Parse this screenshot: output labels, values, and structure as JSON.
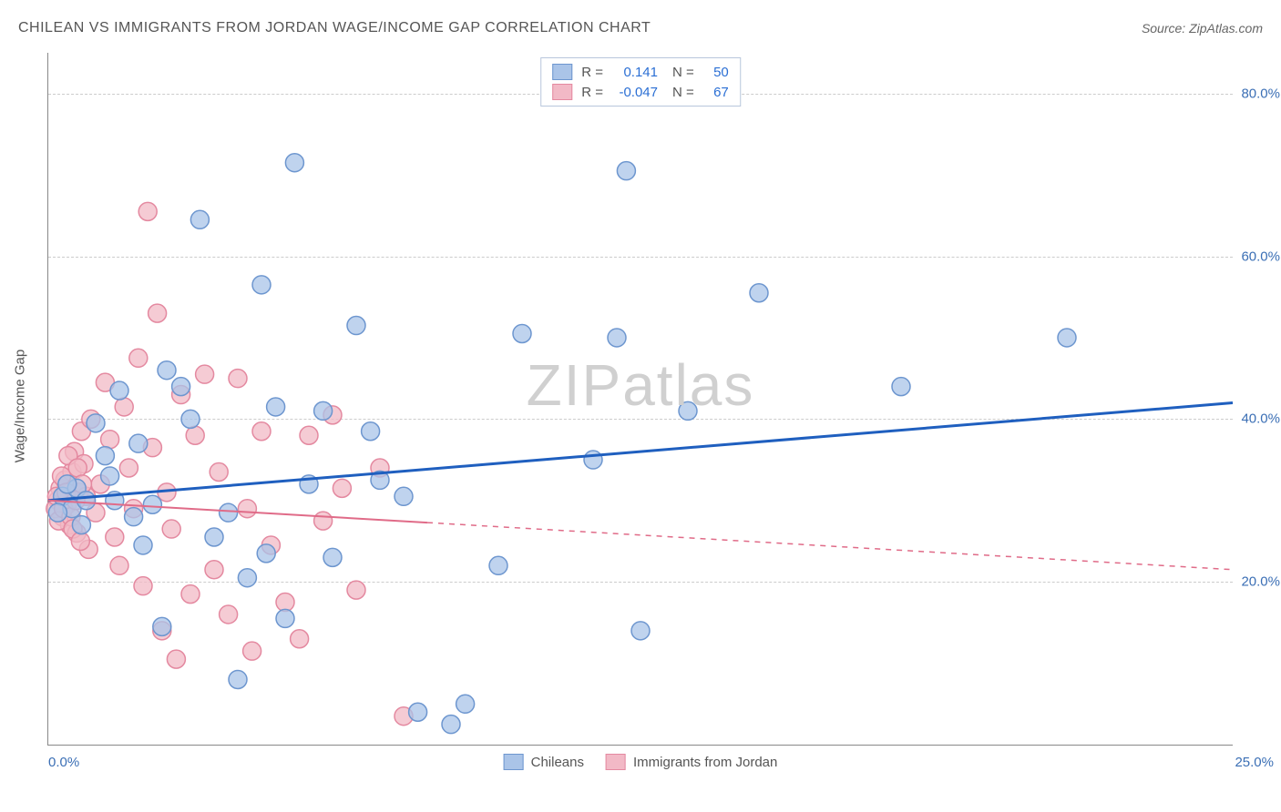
{
  "header": {
    "title": "CHILEAN VS IMMIGRANTS FROM JORDAN WAGE/INCOME GAP CORRELATION CHART",
    "source_label": "Source:",
    "source_value": "ZipAtlas.com"
  },
  "chart": {
    "type": "scatter",
    "ylabel": "Wage/Income Gap",
    "background_color": "#ffffff",
    "grid_color": "#cccccc",
    "axis_color": "#888888",
    "tick_color": "#3b6fb5",
    "xlim": [
      0,
      25
    ],
    "ylim": [
      0,
      85
    ],
    "yticks": [
      20,
      40,
      60,
      80
    ],
    "ytick_labels": [
      "20.0%",
      "40.0%",
      "60.0%",
      "80.0%"
    ],
    "xtick_left": "0.0%",
    "xtick_right": "25.0%",
    "watermark": "ZIPatlas",
    "series": [
      {
        "name": "Chileans",
        "color_fill": "#aac4e8",
        "color_stroke": "#6d96cf",
        "marker_radius": 10,
        "marker_opacity": 0.75,
        "points": [
          [
            0.3,
            30.5
          ],
          [
            0.5,
            29.0
          ],
          [
            0.6,
            31.5
          ],
          [
            0.8,
            30.0
          ],
          [
            0.4,
            32.0
          ],
          [
            1.0,
            39.5
          ],
          [
            1.2,
            35.5
          ],
          [
            1.3,
            33.0
          ],
          [
            1.5,
            43.5
          ],
          [
            1.8,
            28.0
          ],
          [
            1.9,
            37.0
          ],
          [
            2.0,
            24.5
          ],
          [
            2.2,
            29.5
          ],
          [
            2.4,
            14.5
          ],
          [
            2.5,
            46.0
          ],
          [
            2.8,
            44.0
          ],
          [
            3.0,
            40.0
          ],
          [
            3.2,
            64.5
          ],
          [
            3.5,
            25.5
          ],
          [
            3.8,
            28.5
          ],
          [
            4.0,
            8.0
          ],
          [
            4.2,
            20.5
          ],
          [
            4.5,
            56.5
          ],
          [
            4.6,
            23.5
          ],
          [
            4.8,
            41.5
          ],
          [
            5.0,
            15.5
          ],
          [
            5.2,
            71.5
          ],
          [
            5.5,
            32.0
          ],
          [
            5.8,
            41.0
          ],
          [
            6.0,
            23.0
          ],
          [
            6.5,
            51.5
          ],
          [
            6.8,
            38.5
          ],
          [
            7.0,
            32.5
          ],
          [
            7.5,
            30.5
          ],
          [
            7.8,
            4.0
          ],
          [
            8.5,
            2.5
          ],
          [
            8.8,
            5.0
          ],
          [
            9.5,
            22.0
          ],
          [
            10.0,
            50.5
          ],
          [
            11.5,
            35.0
          ],
          [
            12.0,
            50.0
          ],
          [
            12.2,
            70.5
          ],
          [
            12.5,
            14.0
          ],
          [
            13.5,
            41.0
          ],
          [
            15.0,
            55.5
          ],
          [
            18.0,
            44.0
          ],
          [
            21.5,
            50.0
          ],
          [
            0.2,
            28.5
          ],
          [
            0.7,
            27.0
          ],
          [
            1.4,
            30.0
          ]
        ],
        "trend": {
          "x1": 0,
          "y1": 30.0,
          "x2": 25,
          "y2": 42.0,
          "color": "#1f5fbf",
          "width": 3,
          "solid_until_x": 25
        }
      },
      {
        "name": "Immigrants from Jordan",
        "color_fill": "#f2b9c6",
        "color_stroke": "#e489a0",
        "marker_radius": 10,
        "marker_opacity": 0.75,
        "points": [
          [
            0.2,
            30.0
          ],
          [
            0.25,
            31.5
          ],
          [
            0.3,
            28.0
          ],
          [
            0.35,
            32.5
          ],
          [
            0.4,
            29.5
          ],
          [
            0.45,
            27.0
          ],
          [
            0.5,
            33.5
          ],
          [
            0.55,
            36.0
          ],
          [
            0.6,
            26.0
          ],
          [
            0.65,
            31.0
          ],
          [
            0.7,
            38.5
          ],
          [
            0.75,
            34.5
          ],
          [
            0.8,
            30.5
          ],
          [
            0.85,
            24.0
          ],
          [
            0.9,
            40.0
          ],
          [
            1.0,
            28.5
          ],
          [
            1.1,
            32.0
          ],
          [
            1.2,
            44.5
          ],
          [
            1.3,
            37.5
          ],
          [
            1.4,
            25.5
          ],
          [
            1.5,
            22.0
          ],
          [
            1.6,
            41.5
          ],
          [
            1.7,
            34.0
          ],
          [
            1.8,
            29.0
          ],
          [
            1.9,
            47.5
          ],
          [
            2.0,
            19.5
          ],
          [
            2.1,
            65.5
          ],
          [
            2.2,
            36.5
          ],
          [
            2.3,
            53.0
          ],
          [
            2.4,
            14.0
          ],
          [
            2.5,
            31.0
          ],
          [
            2.6,
            26.5
          ],
          [
            2.7,
            10.5
          ],
          [
            2.8,
            43.0
          ],
          [
            3.0,
            18.5
          ],
          [
            3.1,
            38.0
          ],
          [
            3.3,
            45.5
          ],
          [
            3.5,
            21.5
          ],
          [
            3.6,
            33.5
          ],
          [
            3.8,
            16.0
          ],
          [
            4.0,
            45.0
          ],
          [
            4.2,
            29.0
          ],
          [
            4.3,
            11.5
          ],
          [
            4.5,
            38.5
          ],
          [
            4.7,
            24.5
          ],
          [
            5.0,
            17.5
          ],
          [
            5.3,
            13.0
          ],
          [
            5.5,
            38.0
          ],
          [
            5.8,
            27.5
          ],
          [
            6.0,
            40.5
          ],
          [
            6.2,
            31.5
          ],
          [
            6.5,
            19.0
          ],
          [
            7.0,
            34.0
          ],
          [
            7.5,
            3.5
          ],
          [
            0.15,
            29.0
          ],
          [
            0.18,
            30.5
          ],
          [
            0.22,
            27.5
          ],
          [
            0.28,
            33.0
          ],
          [
            0.32,
            29.0
          ],
          [
            0.38,
            31.0
          ],
          [
            0.42,
            35.5
          ],
          [
            0.48,
            28.0
          ],
          [
            0.52,
            26.5
          ],
          [
            0.58,
            30.0
          ],
          [
            0.62,
            34.0
          ],
          [
            0.68,
            25.0
          ],
          [
            0.72,
            32.0
          ]
        ],
        "trend": {
          "x1": 0,
          "y1": 30.0,
          "x2": 25,
          "y2": 21.5,
          "color": "#e06b88",
          "width": 2,
          "solid_until_x": 8
        }
      }
    ]
  },
  "legend_top": {
    "rows": [
      {
        "swatch_fill": "#aac4e8",
        "swatch_stroke": "#6d96cf",
        "r_label": "R =",
        "r_value": "0.141",
        "n_label": "N =",
        "n_value": "50"
      },
      {
        "swatch_fill": "#f2b9c6",
        "swatch_stroke": "#e489a0",
        "r_label": "R =",
        "r_value": "-0.047",
        "n_label": "N =",
        "n_value": "67"
      }
    ]
  },
  "legend_bottom": {
    "items": [
      {
        "swatch_fill": "#aac4e8",
        "swatch_stroke": "#6d96cf",
        "label": "Chileans"
      },
      {
        "swatch_fill": "#f2b9c6",
        "swatch_stroke": "#e489a0",
        "label": "Immigrants from Jordan"
      }
    ]
  }
}
